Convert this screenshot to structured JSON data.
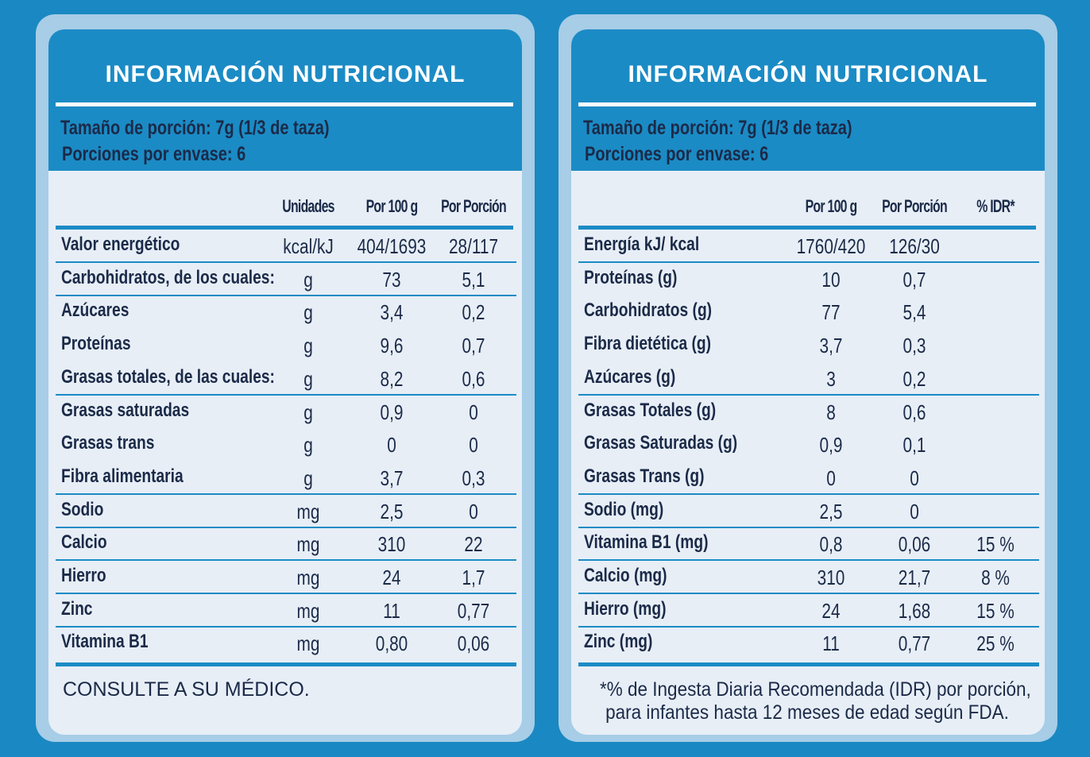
{
  "panels": [
    {
      "title": "INFORMACIÓN NUTRICIONAL",
      "serving_size": "Tamaño de porción: 7g (1/3 de taza)",
      "servings_per_container": "Porciones por envase: 6",
      "table": {
        "headers": [
          "Unidades",
          "Por 100 g",
          "Por Porción"
        ],
        "rows": [
          [
            "Valor energético",
            "kcal/kJ",
            "404/1693",
            "28/117"
          ],
          [
            "Carbohidratos, de los cuales:",
            "g",
            "73",
            "5,1"
          ],
          [
            "Azúcares",
            "g",
            "3,4",
            "0,2"
          ],
          [
            "Proteínas",
            "g",
            "9,6",
            "0,7"
          ],
          [
            "Grasas totales, de las cuales:",
            "g",
            "8,2",
            "0,6"
          ],
          [
            "Grasas saturadas",
            "g",
            "0,9",
            "0"
          ],
          [
            "Grasas trans",
            "g",
            "0",
            "0"
          ],
          [
            "Fibra alimentaria",
            "g",
            "3,7",
            "0,3"
          ],
          [
            "Sodio",
            "mg",
            "2,5",
            "0"
          ],
          [
            "Calcio",
            "mg",
            "310",
            "22"
          ],
          [
            "Hierro",
            "mg",
            "24",
            "1,7"
          ],
          [
            "Zinc",
            "mg",
            "11",
            "0,77"
          ],
          [
            "Vitamina B1",
            "mg",
            "0,80",
            "0,06"
          ]
        ]
      },
      "footer": [
        "CONSULTE A SU MÉDICO."
      ]
    },
    {
      "title": "INFORMACIÓN NUTRICIONAL",
      "serving_size": "Tamaño de porción: 7g (1/3 de taza)",
      "servings_per_container": "Porciones por envase: 6",
      "table": {
        "headers": [
          "Por 100 g",
          "Por Porción",
          "% IDR*"
        ],
        "rows": [
          [
            "Energía  kJ/ kcal",
            "1760/420",
            "126/30"
          ],
          [
            "Proteínas (g)",
            "10",
            "0,7"
          ],
          [
            "Carbohidratos (g)",
            "77",
            "5,4"
          ],
          [
            "Fibra dietética (g)",
            "3,7",
            "0,3"
          ],
          [
            "Azúcares (g)",
            "3",
            "0,2"
          ],
          [
            "Grasas Totales (g)",
            "8",
            "0,6"
          ],
          [
            "Grasas Saturadas (g)",
            "0,9",
            "0,1"
          ],
          [
            "Grasas Trans (g)",
            "0",
            "0"
          ],
          [
            "Sodio (mg)",
            "2,5",
            "0"
          ],
          [
            "Vitamina B1 (mg)",
            "0,8",
            "0,06",
            "15 %"
          ],
          [
            "Calcio (mg)",
            "310",
            "21,7",
            "8 %"
          ],
          [
            "Hierro (mg)",
            "24",
            "1,68",
            "15 %"
          ],
          [
            "Zinc (mg)",
            "11",
            "0,77",
            "25 %"
          ]
        ]
      },
      "footer": [
        "*% de Ingesta Diaria Recomendada  (IDR) por porción,",
        "para infantes hasta 12 meses de edad según FDA."
      ]
    }
  ]
}
